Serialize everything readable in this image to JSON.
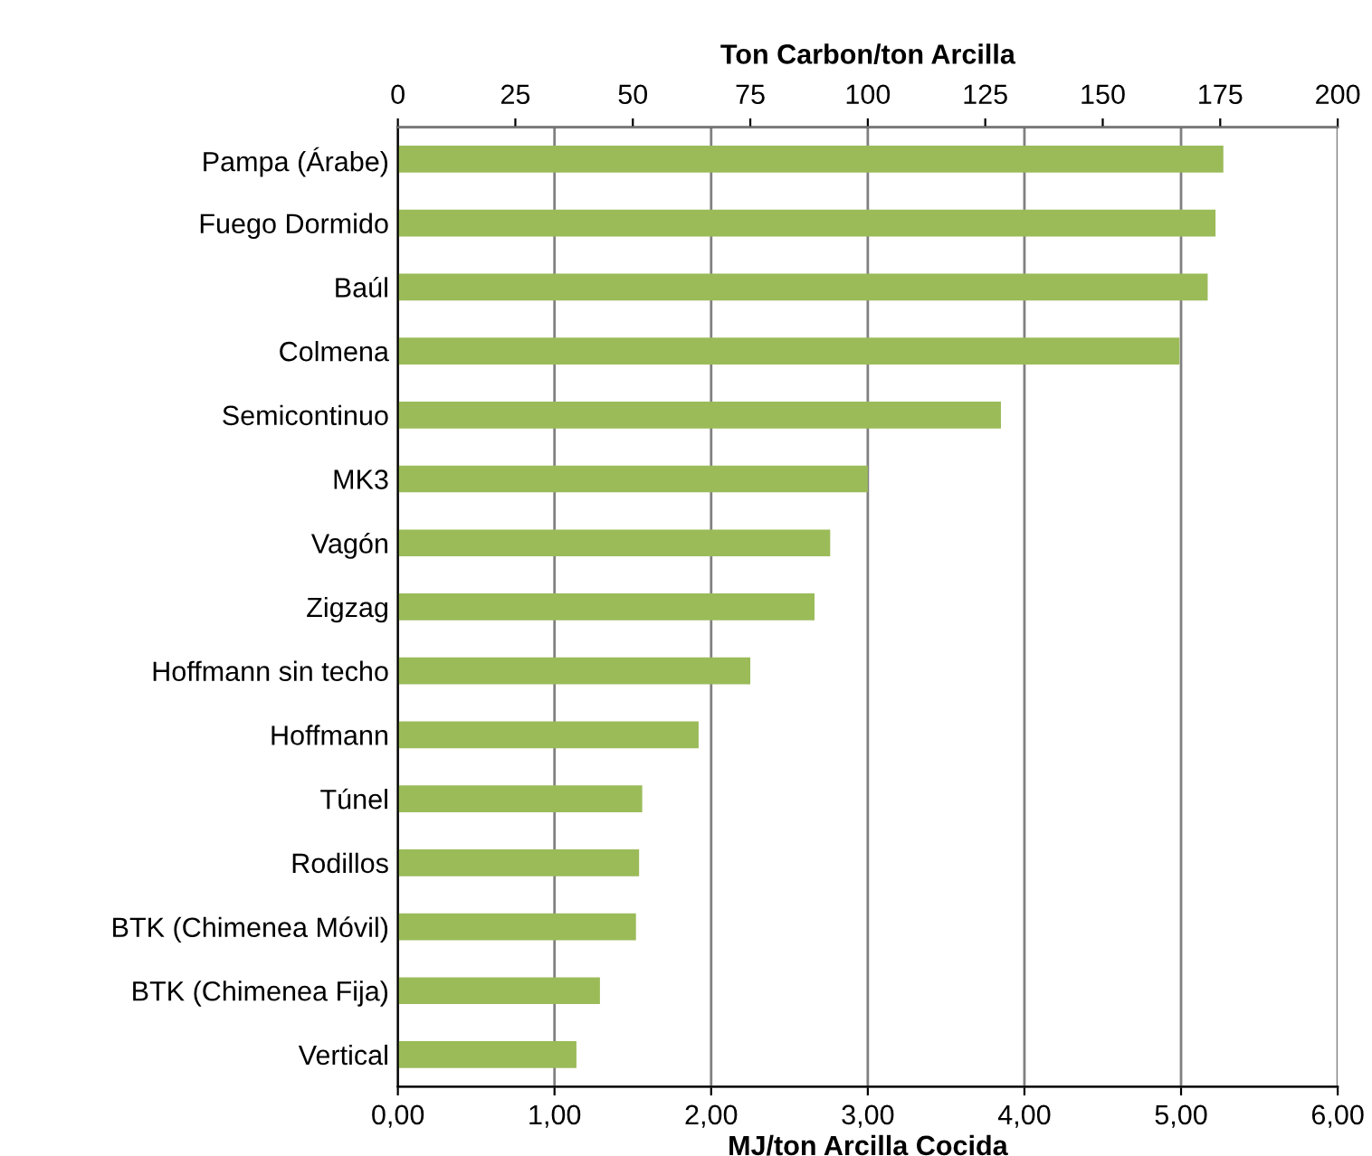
{
  "chart_data": {
    "type": "bar",
    "orientation": "horizontal",
    "xlabel": "MJ/ton Arcilla Cocida",
    "x2label": "Ton Carbon/ton Arcilla",
    "categories": [
      "Pampa (Árabe)",
      "Fuego Dormido",
      "Baúl",
      "Colmena",
      "Semicontinuo",
      "MK3",
      "Vagón",
      "Zigzag",
      "Hoffmann sin techo",
      "Hoffmann",
      "Túnel",
      "Rodillos",
      "BTK (Chimenea Móvil)",
      "BTK (Chimenea Fija)",
      "Vertical"
    ],
    "values": [
      5.27,
      5.22,
      5.17,
      4.99,
      3.85,
      3.0,
      2.76,
      2.66,
      2.25,
      1.92,
      1.56,
      1.54,
      1.52,
      1.29,
      1.14
    ],
    "color": "#9bbb59",
    "xlim": [
      0,
      6
    ],
    "xticks": [
      {
        "value": 0,
        "label": "0,00"
      },
      {
        "value": 1,
        "label": "1,00"
      },
      {
        "value": 2,
        "label": "2,00"
      },
      {
        "value": 3,
        "label": "3,00"
      },
      {
        "value": 4,
        "label": "4,00"
      },
      {
        "value": 5,
        "label": "5,00"
      },
      {
        "value": 6,
        "label": "6,00"
      }
    ],
    "x2lim": [
      0,
      200
    ],
    "x2ticks": [
      0,
      25,
      50,
      75,
      100,
      125,
      150,
      175,
      200
    ],
    "grid": "x",
    "legend": false
  }
}
